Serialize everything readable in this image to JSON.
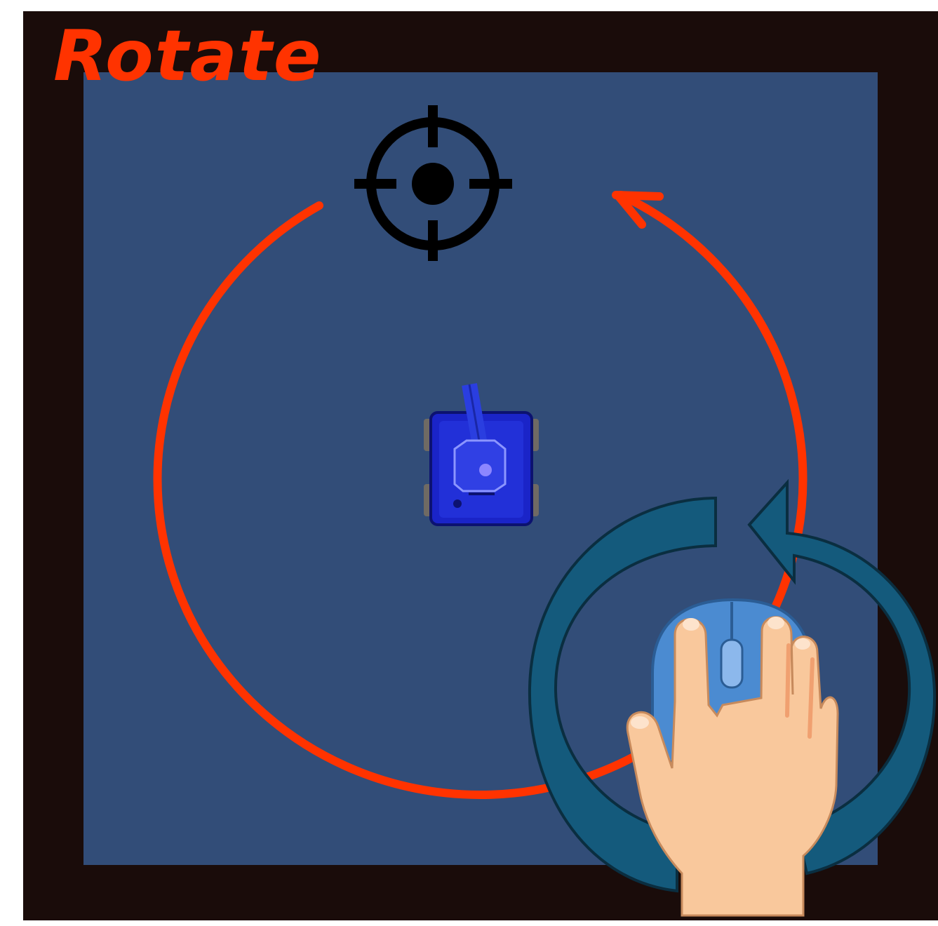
{
  "title": "Rotate",
  "colors": {
    "frame": "#1a0c0a",
    "arena": "#324d78",
    "title": "#ff3300",
    "rotation_path": "#ff3300",
    "mouse_rotate_arrow": "#145a7c",
    "tank_body": "#1a24c8",
    "crosshair": "#000000",
    "hand": "#f9c89c",
    "mouse": "#4b8bd1"
  },
  "icons": {
    "target": "crosshair-icon",
    "player": "tank-icon",
    "rotation_path": "clockwise-arrow-icon",
    "mouse_gesture": "rotate-arrow-icon",
    "hand_mouse": "hand-on-mouse-icon"
  }
}
